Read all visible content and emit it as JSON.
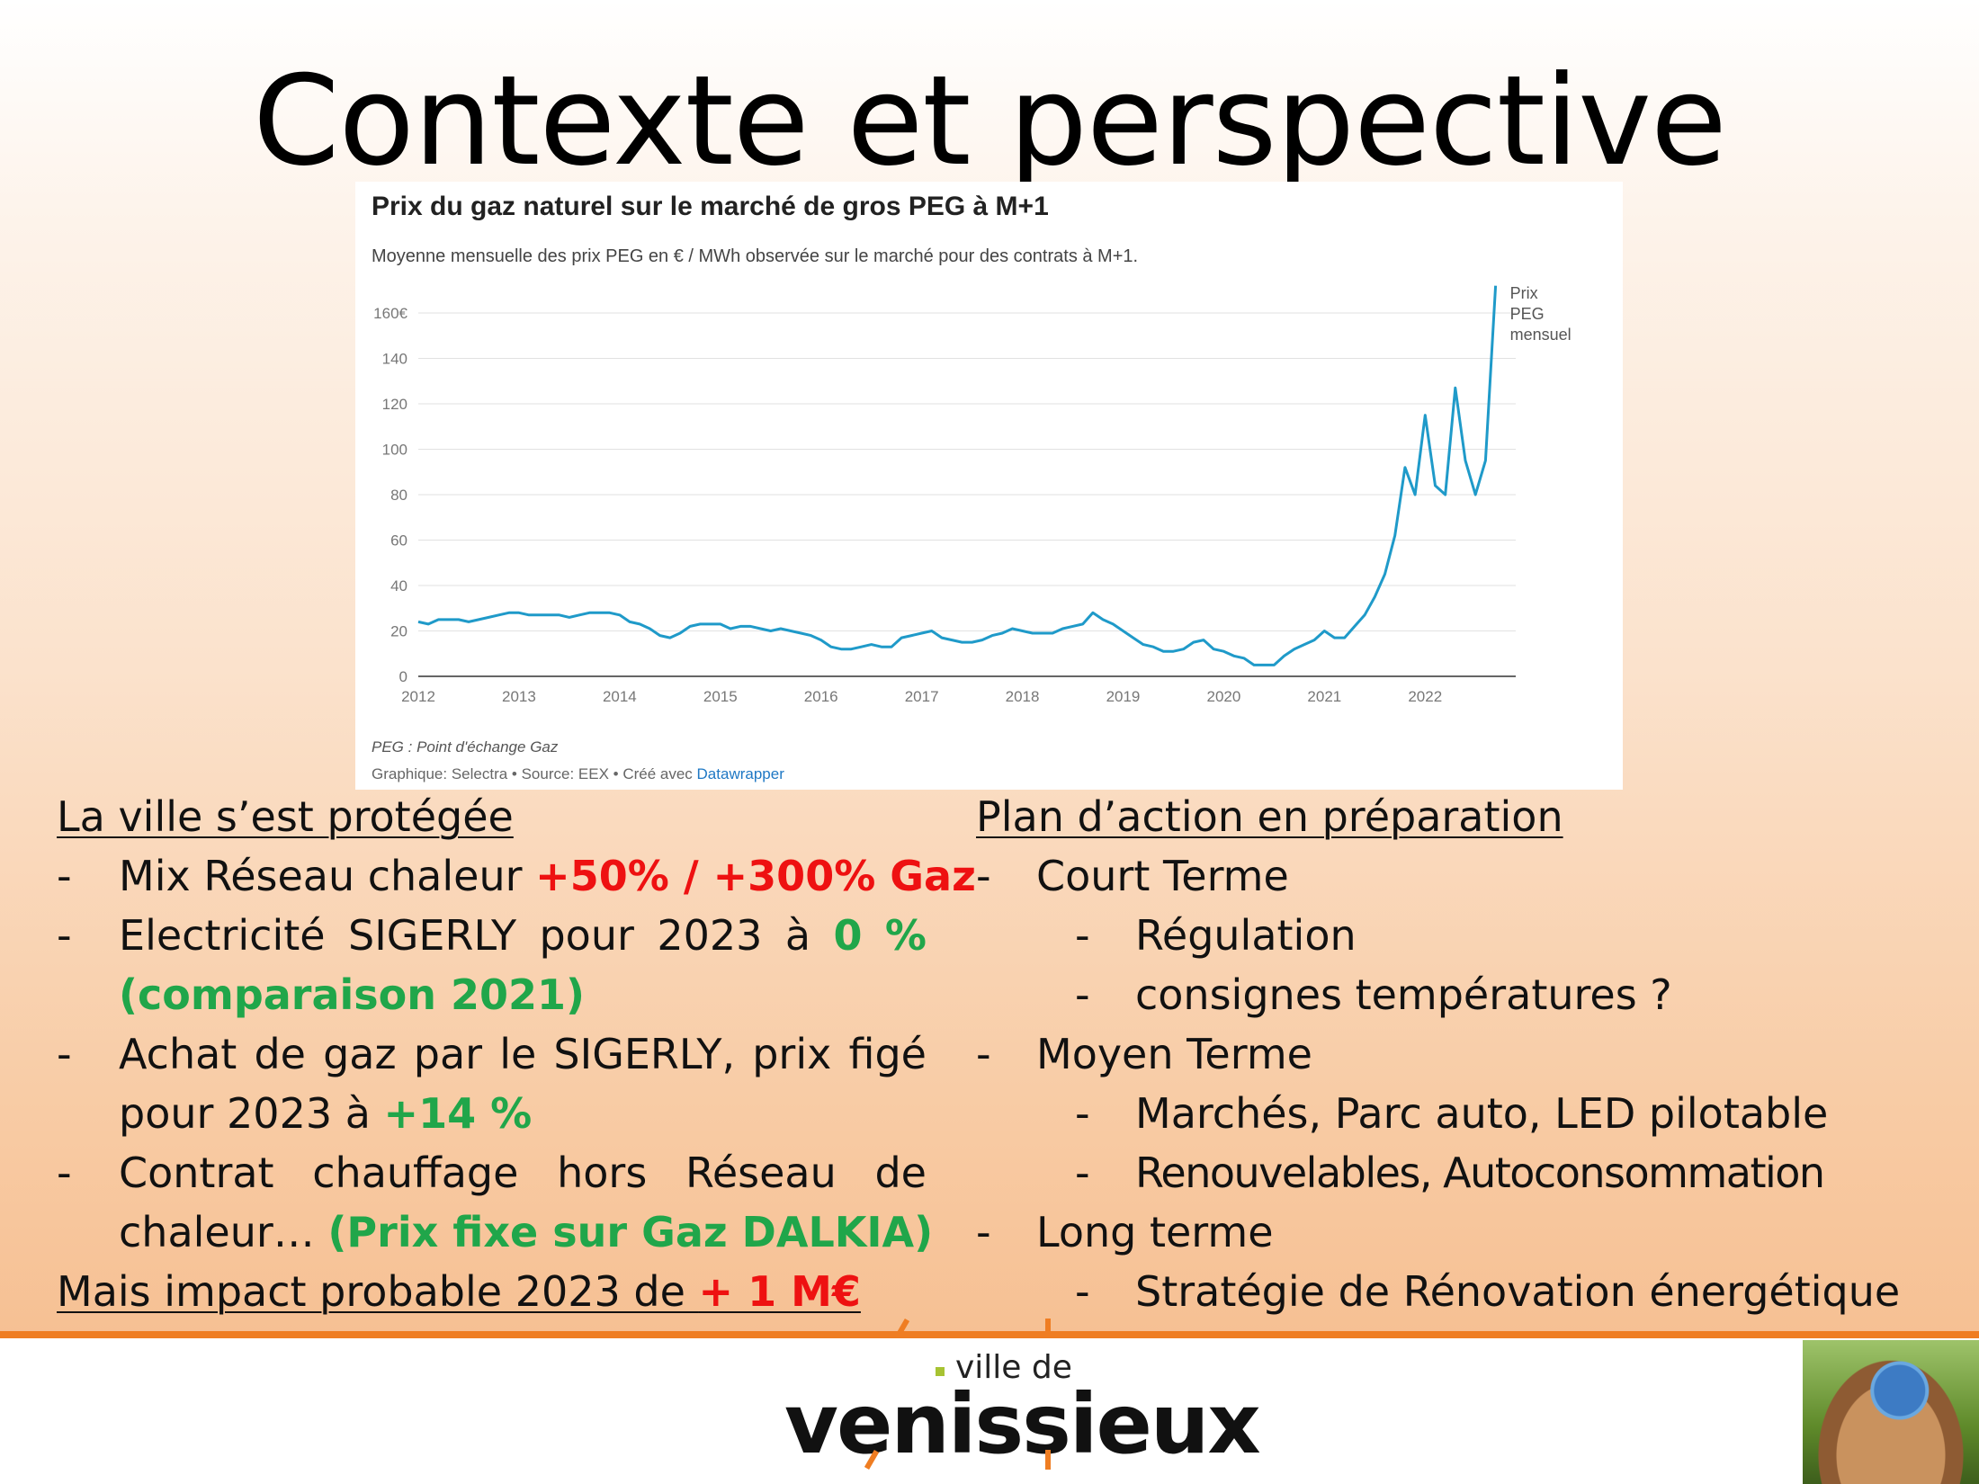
{
  "slide": {
    "title": "Contexte et perspective"
  },
  "chart_data": {
    "type": "line",
    "title": "Prix du gaz naturel sur le marché de gros PEG à M+1",
    "subtitle": "Moyenne mensuelle des prix PEG en € / MWh observée sur le marché pour des contrats à M+1.",
    "ylim": [
      0,
      160
    ],
    "y_ticks": [
      "0",
      "20",
      "40",
      "60",
      "80",
      "100",
      "120",
      "140",
      "160€"
    ],
    "y_tick_values": [
      0,
      20,
      40,
      60,
      80,
      100,
      120,
      140,
      160
    ],
    "x_ticks": [
      "2012",
      "2013",
      "2014",
      "2015",
      "2016",
      "2017",
      "2018",
      "2019",
      "2020",
      "2021",
      "2022"
    ],
    "x_tick_values": [
      2012,
      2013,
      2014,
      2015,
      2016,
      2017,
      2018,
      2019,
      2020,
      2021,
      2022
    ],
    "xlim": [
      2012,
      2022.9
    ],
    "grid": true,
    "series_label_lines": [
      "Prix",
      "PEG",
      "mensuel"
    ],
    "series": [
      {
        "name": "Prix PEG mensuel",
        "color": "#1f9ac9",
        "x": [
          2012.0,
          2012.1,
          2012.2,
          2012.3,
          2012.4,
          2012.5,
          2012.6,
          2012.7,
          2012.8,
          2012.9,
          2013.0,
          2013.1,
          2013.2,
          2013.3,
          2013.4,
          2013.5,
          2013.6,
          2013.7,
          2013.8,
          2013.9,
          2014.0,
          2014.1,
          2014.2,
          2014.3,
          2014.4,
          2014.5,
          2014.6,
          2014.7,
          2014.8,
          2014.9,
          2015.0,
          2015.1,
          2015.2,
          2015.3,
          2015.4,
          2015.5,
          2015.6,
          2015.7,
          2015.8,
          2015.9,
          2016.0,
          2016.1,
          2016.2,
          2016.3,
          2016.4,
          2016.5,
          2016.6,
          2016.7,
          2016.8,
          2016.9,
          2017.0,
          2017.1,
          2017.2,
          2017.3,
          2017.4,
          2017.5,
          2017.6,
          2017.7,
          2017.8,
          2017.9,
          2018.0,
          2018.1,
          2018.2,
          2018.3,
          2018.4,
          2018.5,
          2018.6,
          2018.7,
          2018.8,
          2018.9,
          2019.0,
          2019.1,
          2019.2,
          2019.3,
          2019.4,
          2019.5,
          2019.6,
          2019.7,
          2019.8,
          2019.9,
          2020.0,
          2020.1,
          2020.2,
          2020.3,
          2020.4,
          2020.5,
          2020.6,
          2020.7,
          2020.8,
          2020.9,
          2021.0,
          2021.1,
          2021.2,
          2021.3,
          2021.4,
          2021.5,
          2021.6,
          2021.7,
          2021.8,
          2021.9,
          2022.0,
          2022.1,
          2022.2,
          2022.3,
          2022.4,
          2022.5,
          2022.6,
          2022.7
        ],
        "values": [
          24,
          23,
          25,
          25,
          25,
          24,
          25,
          26,
          27,
          28,
          28,
          27,
          27,
          27,
          27,
          26,
          27,
          28,
          28,
          28,
          27,
          24,
          23,
          21,
          18,
          17,
          19,
          22,
          23,
          23,
          23,
          21,
          22,
          22,
          21,
          20,
          21,
          20,
          19,
          18,
          16,
          13,
          12,
          12,
          13,
          14,
          13,
          13,
          17,
          18,
          19,
          20,
          17,
          16,
          15,
          15,
          16,
          18,
          19,
          21,
          20,
          19,
          19,
          19,
          21,
          22,
          23,
          28,
          25,
          23,
          20,
          17,
          14,
          13,
          11,
          11,
          12,
          15,
          16,
          12,
          11,
          9,
          8,
          5,
          5,
          5,
          9,
          12,
          14,
          16,
          20,
          17,
          17,
          22,
          27,
          35,
          45,
          62,
          92,
          80,
          115,
          84,
          80,
          127,
          95,
          80,
          95,
          172
        ]
      }
    ],
    "footnote": "PEG : Point d'échange Gaz",
    "source_prefix": "Graphique: Selectra • Source: EEX • Créé avec ",
    "source_link": "Datawrapper"
  },
  "left": {
    "heading": "La ville s’est protégée",
    "b1": {
      "text": "Mix Réseau chaleur ",
      "highlight": "+50% / +300% Gaz"
    },
    "b2": {
      "w1": "Electricité",
      "w2": "SIGERLY",
      "w3": "pour",
      "w4": "2023",
      "w5": "à",
      "highlight_a": "0",
      "highlight_b": "%",
      "line2": "(comparaison 2021)"
    },
    "b3": {
      "w1": "Achat",
      "w2": "de",
      "w3": "gaz",
      "w4": "par",
      "w5": "le",
      "w6": "SIGERLY,",
      "w7": "prix",
      "w8": "figé",
      "line2_text": "pour 2023 à ",
      "highlight": "+14 %"
    },
    "b4": {
      "w1": "Contrat",
      "w2": "chauffage",
      "w3": "hors",
      "w4": "Réseau",
      "w5": "de",
      "line2_text": "chaleur… ",
      "highlight": "(Prix fixe sur Gaz DALKIA)"
    },
    "impact": {
      "text": "Mais impact probable 2023 de ",
      "highlight": "+ 1 M€"
    }
  },
  "right": {
    "heading": " Plan d’action en préparation",
    "items": [
      {
        "level": 1,
        "text": "Court Terme"
      },
      {
        "level": 2,
        "text": "Régulation"
      },
      {
        "level": 2,
        "text": "consignes températures ?"
      },
      {
        "level": 1,
        "text": "Moyen Terme"
      },
      {
        "level": 2,
        "text": "Marchés, Parc auto, LED pilotable"
      },
      {
        "level": 2,
        "text": "Renouvelables, Autoconsommation"
      },
      {
        "level": 1,
        "text": "Long terme"
      },
      {
        "level": 2,
        "text": "Stratégie de Rénovation énergétique"
      }
    ]
  },
  "bullet_symbol": "-",
  "logo": {
    "small": "ville de",
    "main": "venissieux"
  },
  "colors": {
    "accent_orange": "#ef7d22",
    "red": "#ee1111",
    "green": "#20a64a",
    "chart_line": "#1f9ac9"
  }
}
